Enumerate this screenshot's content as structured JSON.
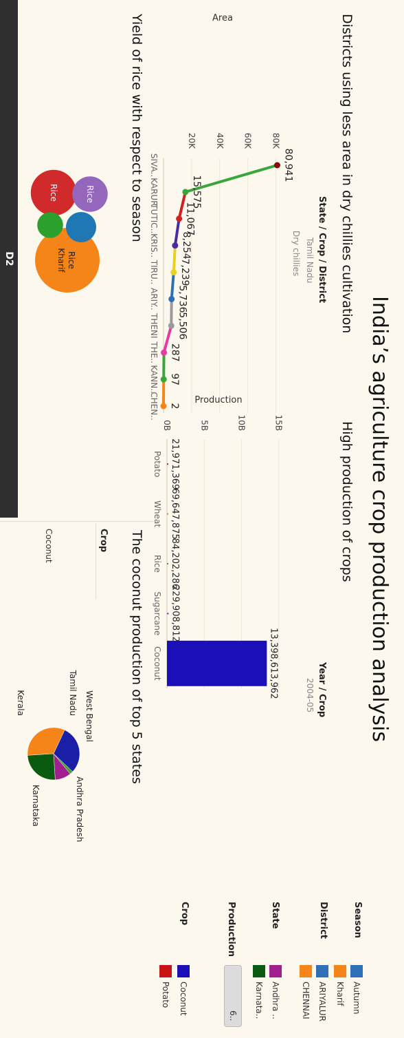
{
  "dashboard": {
    "title": "India’s agriculture crop production analysis",
    "tab_label": "D2"
  },
  "colors": {
    "background": "#fdf8ee",
    "dark_bar": "#2f2f2f",
    "coconut": "#1b0fb8",
    "rice_line": "#3aa53a",
    "sugarcane_line": "#9a2fa8"
  },
  "sheet1": {
    "title": "Districts using less area in dry chillies cultivation",
    "header": "State / Crop / District",
    "state": "Tamil Nadu",
    "crop": "Dry chillies",
    "y_axis_title": "Area",
    "y_ticks": [
      "80K",
      "60K",
      "40K",
      "20K"
    ]
  },
  "sheet2": {
    "title": "High production of crops",
    "header": "Year / Crop",
    "year": "2004-05",
    "y_axis_title": "Production",
    "y_ticks": [
      "15B",
      "10B",
      "5B",
      "0B"
    ]
  },
  "sheet3": {
    "title": "Yield of rice with respect to season"
  },
  "sheet4": {
    "title": "The coconut production of top 5 states",
    "header": "Crop",
    "crop": "Coconut"
  },
  "legends": {
    "season": {
      "title": "Season",
      "items": [
        {
          "label": "Autumn",
          "color": "#2f6fb5"
        },
        {
          "label": "Kharif",
          "color": "#f58518"
        }
      ]
    },
    "district": {
      "title": "District",
      "items": [
        {
          "label": "ARIYALUR",
          "color": "#2f6fb5"
        },
        {
          "label": "CHENNAI",
          "color": "#f58518"
        }
      ]
    },
    "state": {
      "title": "State",
      "items": [
        {
          "label": "Andhra ..",
          "color": "#a01f8c"
        },
        {
          "label": "Karnata..",
          "color": "#0a5a10"
        }
      ]
    },
    "production": {
      "title": "Production",
      "slider_value": "6.."
    },
    "crop": {
      "title": "Crop",
      "items": [
        {
          "label": "Coconut",
          "color": "#1b0fb8"
        },
        {
          "label": "Potato",
          "color": "#c81414"
        }
      ]
    }
  },
  "chart_data": [
    {
      "type": "line",
      "title": "Districts using less area in dry chillies cultivation",
      "xlabel": "",
      "ylabel": "Area",
      "ylim": [
        0,
        90000
      ],
      "categories": [
        "SIVA..",
        "KARUR",
        "TUTIC..",
        "KRIS..",
        "TIRU..",
        "ARIY..",
        "THENI",
        "THE..",
        "KANN..",
        "CHEN.."
      ],
      "values": [
        80941,
        15575,
        11067,
        8254,
        7239,
        5736,
        5506,
        287,
        97,
        2
      ],
      "value_labels": [
        "80,941",
        "15,575",
        "11,067",
        "8,254",
        "7,239",
        "5,736",
        "5,506",
        "287",
        "97",
        "2"
      ],
      "point_colors": [
        "#8b0a0a",
        "#3aa53a",
        "#d02020",
        "#4b2ca0",
        "#e8d020",
        "#2f6fb5",
        "#9a9a9a",
        "#e83aa0",
        "#3aa53a",
        "#f58518"
      ]
    },
    {
      "type": "bar",
      "title": "High production of crops",
      "xlabel": "",
      "ylabel": "Production",
      "ylim": [
        0,
        16500000000
      ],
      "categories": [
        "Potato",
        "Wheat",
        "Rice",
        "Sugarcane",
        "Coconut"
      ],
      "values": [
        21971369,
        69647875,
        84202286,
        229908812,
        13398613962
      ],
      "value_labels": [
        "21,971,369",
        "69,647,875",
        "84,202,286",
        "229,908,812",
        "13,398,613,962"
      ],
      "bar_colors": [
        "#c81414",
        "#f58518",
        "#3aa53a",
        "#9a2fa8",
        "#1b0fb8"
      ]
    },
    {
      "type": "bubble",
      "title": "Yield of rice with respect to season",
      "bubbles": [
        {
          "crop": "Rice",
          "season": "Kharif",
          "color": "#f58518",
          "value": 100
        },
        {
          "crop": "Rice",
          "season": "",
          "color": "#d12a2a",
          "value": 50
        },
        {
          "crop": "Rice",
          "season": "",
          "color": "#9467bd",
          "value": 30
        },
        {
          "crop": "",
          "season": "",
          "color": "#1f77b4",
          "value": 22
        },
        {
          "crop": "",
          "season": "",
          "color": "#2ca02c",
          "value": 16
        }
      ]
    },
    {
      "type": "pie",
      "title": "The coconut production of top 5 states",
      "slices": [
        {
          "label": "Kerala",
          "value": 33,
          "color": "#f58518"
        },
        {
          "label": "Tamil Nadu",
          "value": 30,
          "color": "#1b1fa8"
        },
        {
          "label": "West Bengal",
          "value": 2,
          "color": "#3aa53a"
        },
        {
          "label": "Andhra Pradesh",
          "value": 10,
          "color": "#a01f8c"
        },
        {
          "label": "Karnataka",
          "value": 25,
          "color": "#0a5a10"
        }
      ]
    }
  ]
}
